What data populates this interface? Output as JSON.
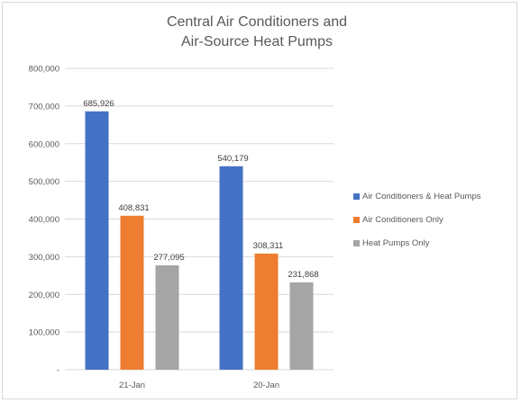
{
  "chart_data": {
    "type": "bar",
    "title_line1": "Central Air Conditioners and",
    "title_line2": "Air-Source Heat Pumps",
    "categories": [
      "21-Jan",
      "20-Jan"
    ],
    "series": [
      {
        "name": "Air Conditioners & Heat Pumps",
        "color": "#4472c4",
        "values": [
          685926,
          540179
        ],
        "labels": [
          "685,926",
          "540,179"
        ]
      },
      {
        "name": "Air Conditioners Only",
        "color": "#ed7d31",
        "values": [
          408831,
          308311
        ],
        "labels": [
          "408,831",
          "308,311"
        ]
      },
      {
        "name": "Heat Pumps Only",
        "color": "#a5a5a5",
        "values": [
          277095,
          231868
        ],
        "labels": [
          "277,095",
          "231,868"
        ]
      }
    ],
    "ylim": [
      0,
      800000
    ],
    "yticks": [
      0,
      100000,
      200000,
      300000,
      400000,
      500000,
      600000,
      700000,
      800000
    ],
    "ytick_labels": [
      "-",
      "100,000",
      "200,000",
      "300,000",
      "400,000",
      "500,000",
      "600,000",
      "700,000",
      "800,000"
    ],
    "grid": true,
    "legend_position": "right"
  }
}
